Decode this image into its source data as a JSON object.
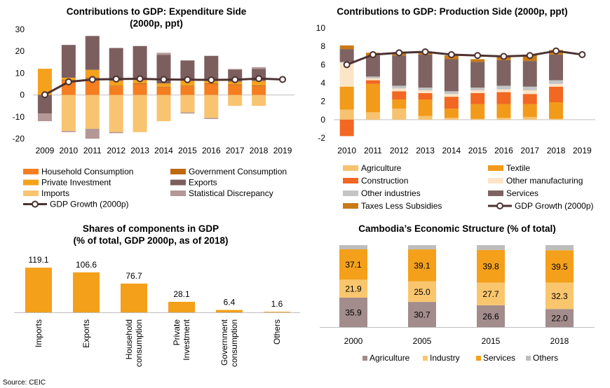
{
  "colors": {
    "household": "#F47E20",
    "government": "#C0690F",
    "private": "#F4A21D",
    "exports": "#7D5E5F",
    "imports": "#F9C470",
    "statdisc": "#B49797",
    "gdp_line": "#4D3131",
    "agriculture_prod": "#F7C26F",
    "textile": "#F29A19",
    "construction": "#F26722",
    "other_mfg": "#FCE5C7",
    "other_ind": "#C4C4C4",
    "services": "#7E6362",
    "taxes": "#C97A16",
    "share_bar": "#F4A01B",
    "struct_agri": "#A38C8C",
    "struct_ind": "#F9C66E",
    "struct_serv": "#F4A01B",
    "struct_oth": "#BDBDBD"
  },
  "source": "Source: CEIC",
  "chart_data": [
    {
      "id": "expenditure",
      "type": "bar",
      "title": "Contributions to GDP: Expenditure Side",
      "subtitle": "(2000p, ppt)",
      "categories": [
        "2009",
        "2010",
        "2011",
        "2012",
        "2013",
        "2014",
        "2015",
        "2016",
        "2017",
        "2018",
        "2019"
      ],
      "ylim": [
        -20,
        30
      ],
      "yticks": [
        -20,
        -10,
        0,
        10,
        20,
        30
      ],
      "series": [
        {
          "name": "Household Consumption",
          "color": "household",
          "values": [
            0,
            6.5,
            7.5,
            4,
            5,
            3.5,
            4,
            5,
            4.5,
            4,
            null
          ]
        },
        {
          "name": "Government Consumption",
          "color": "government",
          "values": [
            0,
            0.4,
            0.5,
            0.3,
            0.4,
            0.3,
            0.3,
            0.4,
            0.4,
            0.4,
            null
          ]
        },
        {
          "name": "Private Investment",
          "color": "private",
          "values": [
            12,
            1,
            3.5,
            2.2,
            1.5,
            1.5,
            2.5,
            1.5,
            1.2,
            2,
            null
          ]
        },
        {
          "name": "Exports",
          "color": "exports",
          "values": [
            -8.5,
            15,
            15.5,
            15,
            15.5,
            13,
            9,
            11,
            5.5,
            5.5,
            null
          ]
        },
        {
          "name": "Imports",
          "color": "imports",
          "values": [
            0,
            -16.5,
            -15.5,
            -17,
            -17,
            -12,
            -8,
            -10.5,
            -5,
            -5,
            null
          ]
        },
        {
          "name": "Statistical Discrepancy",
          "color": "statdisc",
          "values": [
            -3.5,
            -0.5,
            -4.5,
            -0.5,
            0,
            1,
            -0.5,
            -0.5,
            0.3,
            0.8,
            null
          ]
        }
      ],
      "line": {
        "name": "GDP Growth (2000p)",
        "values": [
          0.1,
          6,
          7.1,
          7.3,
          7.4,
          7.1,
          7,
          6.9,
          7,
          7.5,
          7.1
        ]
      }
    },
    {
      "id": "production",
      "type": "bar",
      "title": "Contributions to GDP: Production Side (2000p, ppt)",
      "categories": [
        "2010",
        "2011",
        "2012",
        "2013",
        "2014",
        "2015",
        "2016",
        "2017",
        "2018",
        "2019"
      ],
      "ylim": [
        -2,
        10
      ],
      "yticks": [
        -2,
        0,
        2,
        4,
        6,
        8,
        10
      ],
      "series": [
        {
          "name": "Agriculture",
          "color": "agriculture_prod",
          "values": [
            1.1,
            0.8,
            1.2,
            0.4,
            0.2,
            0.1,
            0.2,
            0.3,
            0.1,
            null
          ]
        },
        {
          "name": "Textile",
          "color": "textile",
          "values": [
            2.5,
            3.1,
            1.0,
            1.8,
            1.0,
            1.6,
            1.5,
            1.4,
            1.8,
            null
          ]
        },
        {
          "name": "Construction",
          "color": "construction",
          "values": [
            -1.8,
            0.4,
            0.9,
            0.7,
            1.3,
            1.2,
            1.3,
            1.1,
            1.7,
            null
          ]
        },
        {
          "name": "Other manufacturing",
          "color": "other_mfg",
          "values": [
            2.6,
            0.2,
            0.3,
            0.3,
            0.3,
            0.3,
            0.3,
            0.4,
            0.3,
            null
          ]
        },
        {
          "name": "Other industries",
          "color": "other_ind",
          "values": [
            0.1,
            0.2,
            0.3,
            0.3,
            0.3,
            0.3,
            0.4,
            0.4,
            0.4,
            null
          ]
        },
        {
          "name": "Services",
          "color": "services",
          "values": [
            1.4,
            2.3,
            3.3,
            3.6,
            3.5,
            2.8,
            2.8,
            2.8,
            2.8,
            null
          ]
        },
        {
          "name": "Taxes Less Subsidies",
          "color": "taxes",
          "values": [
            0.4,
            0.3,
            0.3,
            0.3,
            0.4,
            0.3,
            0.5,
            0.7,
            0.5,
            null
          ]
        }
      ],
      "line": {
        "name": "GDP Growth (2000p)",
        "values": [
          6,
          7.1,
          7.3,
          7.4,
          7.1,
          7,
          6.9,
          7,
          7.5,
          7.1
        ]
      }
    },
    {
      "id": "shares",
      "type": "bar",
      "title": "Shares of components in GDP",
      "subtitle": "(% of total, GDP 2000p, as of 2018)",
      "categories": [
        "Imports",
        "Exports",
        "Household\nconsumption",
        "Private\nInvestment",
        "Government\nconsumption",
        "Others"
      ],
      "values": [
        119.1,
        106.6,
        76.7,
        28.1,
        6.4,
        1.6
      ],
      "value_labels": [
        "119.1",
        "106.6",
        "76.7",
        "28.1",
        "6.4",
        "1.6"
      ],
      "ylim": [
        0,
        125
      ]
    },
    {
      "id": "structure",
      "type": "bar",
      "title": "Cambodia’s Economic Structure (% of total)",
      "categories": [
        "2000",
        "2005",
        "2015",
        "2018"
      ],
      "ylim": [
        0,
        100
      ],
      "series": [
        {
          "name": "Agriculture",
          "color": "struct_agri",
          "values": [
            35.9,
            30.7,
            26.6,
            22.0
          ],
          "labels": [
            "35.9",
            "30.7",
            "26.6",
            "22.0"
          ]
        },
        {
          "name": "Industry",
          "color": "struct_ind",
          "values": [
            21.9,
            25.0,
            27.7,
            32.3
          ],
          "labels": [
            "21.9",
            "25.0",
            "27.7",
            "32.3"
          ]
        },
        {
          "name": "Services",
          "color": "struct_serv",
          "values": [
            37.1,
            39.1,
            39.8,
            39.5
          ],
          "labels": [
            "37.1",
            "39.1",
            "39.8",
            "39.5"
          ]
        },
        {
          "name": "Others",
          "color": "struct_oth",
          "values": [
            5.1,
            5.2,
            5.9,
            6.2
          ]
        }
      ]
    }
  ]
}
